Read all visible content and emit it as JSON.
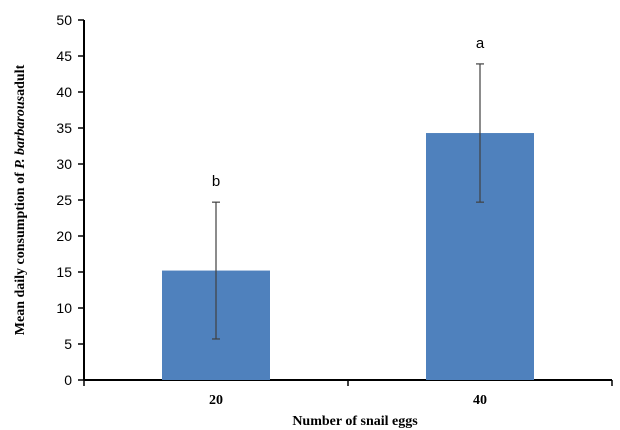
{
  "chart_data": {
    "type": "bar",
    "categories": [
      "20",
      "40"
    ],
    "values": [
      15.2,
      34.3
    ],
    "error_bars": [
      9.5,
      9.6
    ],
    "significance_labels": [
      "b",
      "a"
    ],
    "xlabel": "Number of snail eggs",
    "ylabel_parts": {
      "prefix": "Mean daily consumption of ",
      "species": "P. barbarous",
      "suffix": "adult"
    },
    "ylim": [
      0,
      50
    ],
    "yticks": [
      0,
      5,
      10,
      15,
      20,
      25,
      30,
      35,
      40,
      45,
      50
    ],
    "grid": false,
    "legend": "none",
    "colors": {
      "bar": "#4f81bd",
      "error_bar": "#404040",
      "axis": "#000000"
    }
  }
}
